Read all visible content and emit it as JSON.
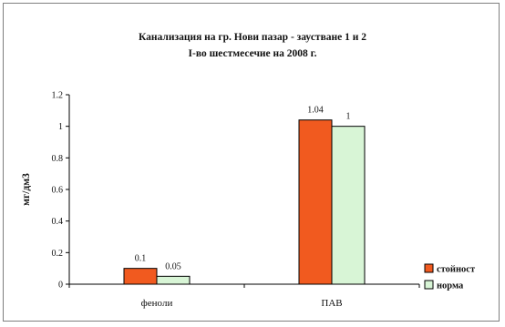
{
  "chart_data": {
    "type": "bar",
    "title": "Канализация на гр. Нови пазар - заустване 1 и 2",
    "subtitle": "I-во шестмесечие на 2008 г.",
    "ylabel": "мг/дм3",
    "xlabel": "",
    "categories": [
      "фенoли",
      "ПАВ"
    ],
    "series": [
      {
        "name": "стойност",
        "values": [
          0.1,
          1.04
        ],
        "labels": [
          "0.1",
          "1.04"
        ],
        "color": "#f15a1f"
      },
      {
        "name": "норма",
        "values": [
          0.05,
          1
        ],
        "labels": [
          "0.05",
          "1"
        ],
        "color": "#d8f5d6"
      }
    ],
    "ylim": [
      0,
      1.2
    ],
    "yticks": [
      "0",
      "0.2",
      "0.4",
      "0.6",
      "0.8",
      "1",
      "1.2"
    ],
    "grid": false,
    "legend": "bottom-right"
  }
}
